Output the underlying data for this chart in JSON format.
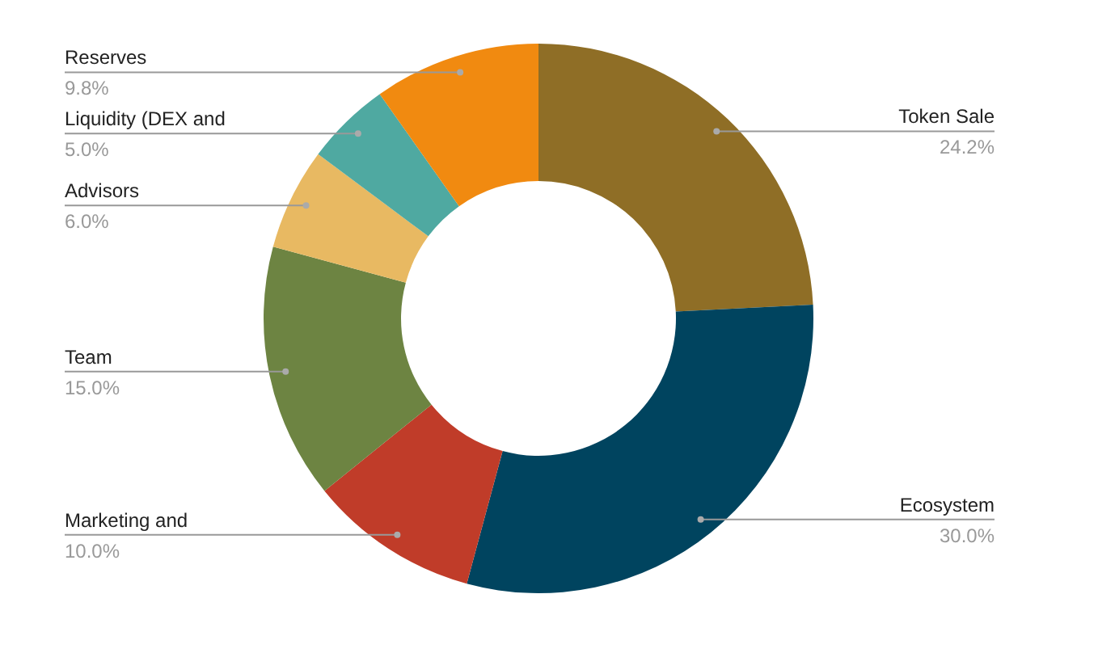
{
  "chart_data": {
    "type": "donut",
    "categories": [
      "Token Sale",
      "Ecosystem",
      "Marketing and",
      "Team",
      "Advisors",
      "Liquidity (DEX and",
      "Reserves"
    ],
    "values": [
      24.2,
      30.0,
      10.0,
      15.0,
      6.0,
      5.0,
      9.8
    ],
    "colors": [
      "#8f6e26",
      "#00445f",
      "#c03c29",
      "#6d8442",
      "#e8b962",
      "#4fa9a1",
      "#f18a10"
    ],
    "value_labels": [
      "24.2%",
      "30.0%",
      "10.0%",
      "15.0%",
      "6.0%",
      "5.0%",
      "9.8%"
    ],
    "legend": false
  }
}
